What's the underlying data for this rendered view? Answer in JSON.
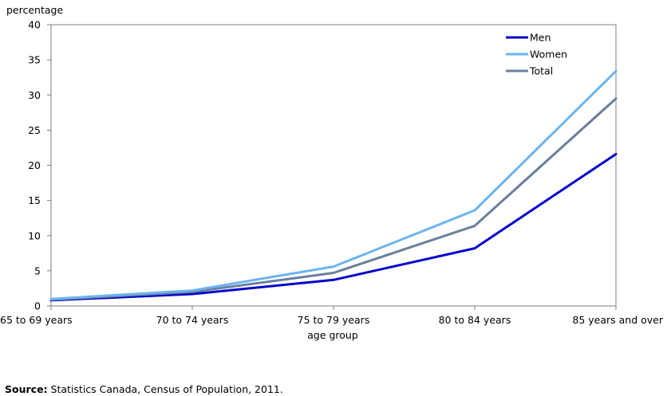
{
  "source": {
    "label": "Source:",
    "text": "Statistics Canada, Census of Population, 2011."
  },
  "chart_data": {
    "type": "line",
    "title": "",
    "ylabel": "percentage",
    "xlabel": "age group",
    "categories": [
      "65 to 69 years",
      "70 to 74 years",
      "75 to 79 years",
      "80 to 84 years",
      "85 years and over"
    ],
    "ylim": [
      0,
      40
    ],
    "yticks": [
      0,
      5,
      10,
      15,
      20,
      25,
      30,
      35,
      40
    ],
    "grid": false,
    "legend_position": "top-right",
    "series": [
      {
        "name": "Men",
        "color": "#0000cc",
        "values": [
          0.8,
          1.7,
          3.7,
          8.2,
          21.6
        ]
      },
      {
        "name": "Women",
        "color": "#6cb4f0",
        "values": [
          1.0,
          2.2,
          5.6,
          13.6,
          33.4
        ]
      },
      {
        "name": "Total",
        "color": "#6a7f9e",
        "values": [
          0.9,
          2.0,
          4.7,
          11.4,
          29.5
        ]
      }
    ]
  }
}
